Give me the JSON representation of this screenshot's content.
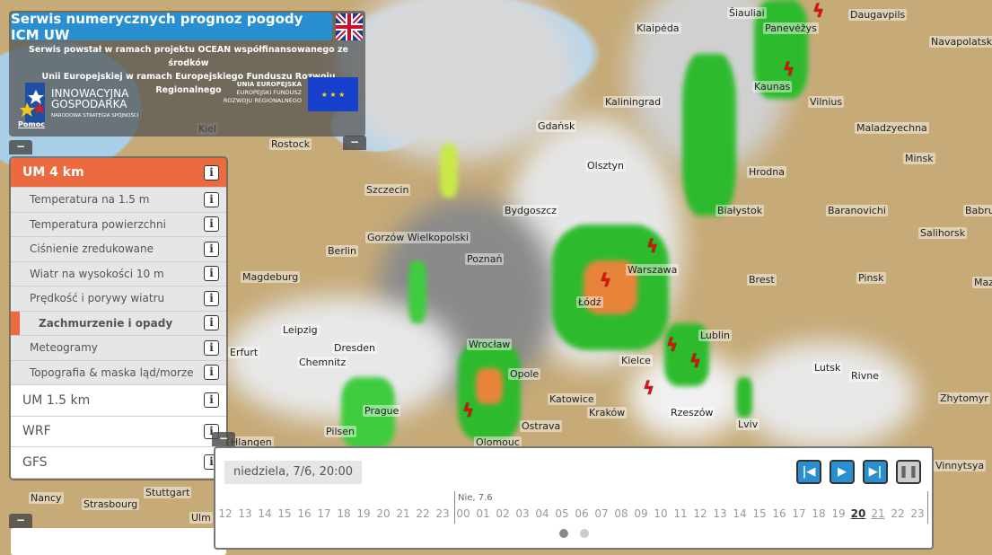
{
  "header": {
    "title": "Serwis numerycznych prognoz pogody ICM UW",
    "language_flag": "uk-flag-icon",
    "description_line1": "Serwis powstał w ramach projektu OCEAN współfinansowanego ze środków",
    "description_line2": "Unii Europejskiej w ramach Europejskiego Funduszu Rozwoju Regionalnego",
    "logo_ig_line1": "INNOWACYJNA",
    "logo_ig_line2": "GOSPODARKA",
    "logo_ig_sub": "NARODOWA STRATEGIA SPÓJNOŚCI",
    "logo_ue_title": "UNIA EUROPEJSKA",
    "logo_ue_sub1": "EUROPEJSKI FUNDUSZ",
    "logo_ue_sub2": "ROZWOJU REGIONALNEGO",
    "help": "Pomoc"
  },
  "menu": {
    "collapse": "−",
    "model_active": "UM 4 km",
    "items": [
      {
        "label": "Temperatura na 1.5 m",
        "active": false
      },
      {
        "label": "Temperatura powierzchni",
        "active": false
      },
      {
        "label": "Ciśnienie zredukowane",
        "active": false
      },
      {
        "label": "Wiatr na wysokości 10 m",
        "active": false
      },
      {
        "label": "Prędkość i porywy wiatru",
        "active": false
      },
      {
        "label": "Zachmurzenie i opady",
        "active": true
      },
      {
        "label": "Meteogramy",
        "active": false
      },
      {
        "label": "Topografia & maska ląd/morze",
        "active": false
      }
    ],
    "models": [
      "UM 1.5 km",
      "WRF",
      "GFS"
    ],
    "info": "i"
  },
  "timeline": {
    "current": "niedziela, 7/6, 20:00",
    "day_label": "Nie, 7.6",
    "hours": [
      "12",
      "13",
      "14",
      "15",
      "16",
      "17",
      "18",
      "19",
      "20",
      "21",
      "22",
      "23",
      "00",
      "01",
      "02",
      "03",
      "04",
      "05",
      "06",
      "07",
      "08",
      "09",
      "10",
      "11",
      "12",
      "13",
      "14",
      "15",
      "16",
      "17",
      "18",
      "19",
      "20",
      "21",
      "22",
      "23"
    ],
    "selected_hour": "20",
    "controls": [
      "step-back-icon",
      "play-icon",
      "step-forward-icon",
      "pause-icon"
    ]
  },
  "colors": {
    "accent": "#ec6a40",
    "blue": "#2a8fd0"
  },
  "cities": [
    "Šiauliai",
    "Panevėžys",
    "Daugavpils",
    "Klaipėda",
    "Navapolatsk",
    "Kaunas",
    "Vilnius",
    "Kaliningrad",
    "Gdańsk",
    "Maladzyechna",
    "Kiel",
    "Rostock",
    "Olsztyn",
    "Hrodna",
    "Minsk",
    "Szczecin",
    "Białystok",
    "Bydgoszcz",
    "Baranovichi",
    "Babruy",
    "Salihorsk",
    "Gorzów Wielkopolski",
    "Berlin",
    "Poznań",
    "Warszawa",
    "Magdeburg",
    "Brest",
    "Pinsk",
    "Mazy",
    "Łódź",
    "Leipzig",
    "Lublin",
    "Dresden",
    "Wrocław",
    "Erfurt",
    "Chemnitz",
    "Opole",
    "Kielce",
    "Lutsk",
    "Rivne",
    "Katowice",
    "Zhytomyr",
    "Prague",
    "Kraków",
    "Rzeszów",
    "Lviv",
    "Pilsen",
    "Ostrava",
    "Olomouc",
    "Vinnytsya",
    "Nancy",
    "Stuttgart",
    "Strasbourg",
    "Ulm",
    "Hlangen"
  ]
}
